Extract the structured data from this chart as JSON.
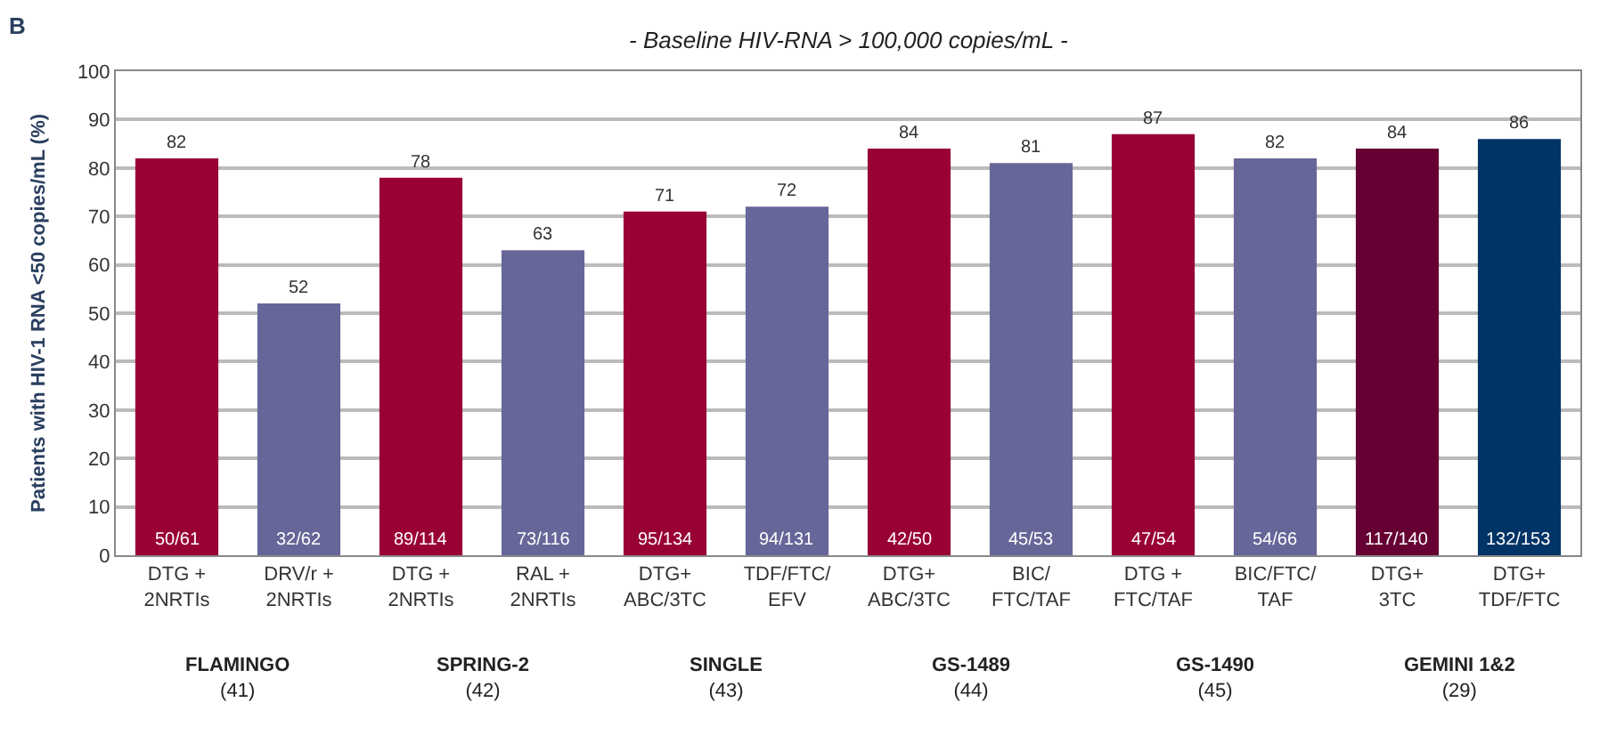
{
  "chart_data": {
    "type": "bar",
    "title": "- Baseline HIV-RNA > 100,000 copies/mL -",
    "ylabel": "Patients with HIV-1 RNA <50 copies/mL (%)",
    "categories": [
      "DTG +\n2NRTIs",
      "DRV/r +\n2NRTIs",
      "DTG +\n2NRTIs",
      "RAL +\n2NRTIs",
      "DTG+\nABC/3TC",
      "TDF/FTC/\nEFV",
      "DTG+\nABC/3TC",
      "BIC/\nFTC/TAF",
      "DTG +\nFTC/TAF",
      "BIC/FTC/\nTAF",
      "DTG+\n3TC",
      "DTG+\nTDF/FTC"
    ],
    "values": [
      82,
      52,
      78,
      63,
      71,
      72,
      84,
      81,
      87,
      82,
      84,
      86
    ],
    "colors": [
      "#990033",
      "#666699",
      "#990033",
      "#666699",
      "#990033",
      "#666699",
      "#990033",
      "#666699",
      "#990033",
      "#666699",
      "#660033",
      "#003366"
    ],
    "data_labels": true,
    "ylim": [
      0,
      100
    ],
    "yticks": [
      0,
      10,
      20,
      30,
      40,
      50,
      60,
      70,
      80,
      90,
      100
    ],
    "grid": "y",
    "annotations": [
      "B",
      "FLAMINGO\n(41)",
      "SPRING-2\n(42)",
      "SINGLE\n(43)",
      "GS-1489\n(44)",
      "GS-1490\n(45)",
      "GEMINI 1&2\n(29)",
      {
        "text": "50/61",
        "y": 0
      },
      {
        "text": "32/62",
        "y": 0
      },
      {
        "text": "89/114",
        "y": 0
      },
      {
        "text": "73/116",
        "y": 0
      },
      {
        "text": "95/134",
        "y": 0
      },
      {
        "text": "94/131",
        "y": 0
      },
      {
        "text": "42/50",
        "y": 0
      },
      {
        "text": "45/53",
        "y": 0
      },
      {
        "text": "47/54",
        "y": 0
      },
      {
        "text": "54/66",
        "y": 0
      },
      {
        "text": "117/140",
        "y": 0
      },
      {
        "text": "132/153",
        "y": 0
      }
    ]
  }
}
